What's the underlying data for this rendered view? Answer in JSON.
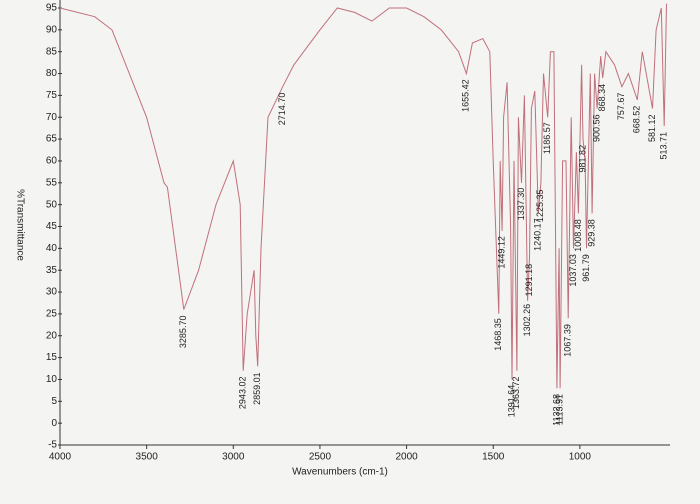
{
  "chart_data": {
    "type": "line",
    "xlabel": "Wavenumbers (cm-1)",
    "ylabel": "%Transmittance",
    "xlim": [
      4000,
      480
    ],
    "ylim": [
      -5,
      95
    ],
    "xticks": [
      4000,
      3500,
      3000,
      2500,
      2000,
      1500,
      1000
    ],
    "yticks": [
      -5,
      0,
      5,
      10,
      15,
      20,
      25,
      30,
      35,
      40,
      45,
      50,
      55,
      60,
      65,
      70,
      75,
      80,
      85,
      90,
      95
    ],
    "grid": false,
    "x": [
      4000,
      3800,
      3700,
      3600,
      3500,
      3400,
      3380,
      3285.7,
      3200,
      3100,
      3000,
      2960,
      2943,
      2920,
      2880,
      2870,
      2859,
      2840,
      2800,
      2714.7,
      2650,
      2500,
      2400,
      2300,
      2200,
      2100,
      2000,
      1900,
      1800,
      1700,
      1655,
      1620,
      1560,
      1520,
      1500,
      1468,
      1460,
      1449,
      1440,
      1420,
      1400,
      1391.6,
      1380,
      1363.7,
      1355,
      1337,
      1320,
      1302,
      1291,
      1280,
      1260,
      1240,
      1225,
      1210,
      1186,
      1170,
      1150,
      1132.7,
      1120,
      1113.9,
      1100,
      1080,
      1067.4,
      1050,
      1037,
      1020,
      1008.5,
      990,
      981.8,
      970,
      961.8,
      940,
      929.4,
      915,
      900.6,
      880,
      868.3,
      850,
      800,
      757.7,
      720,
      668.5,
      640,
      581.1,
      560,
      530,
      513.7,
      500
    ],
    "series": [
      {
        "color": "#c0707a",
        "values": [
          95,
          93,
          90,
          80,
          70,
          55,
          54,
          26,
          35,
          50,
          60,
          50,
          12,
          25,
          35,
          20,
          13,
          40,
          70,
          77,
          82,
          90,
          95,
          94,
          92,
          95,
          95,
          93,
          90,
          85,
          80,
          87,
          88,
          85,
          60,
          25,
          60,
          44,
          70,
          78,
          45,
          10,
          60,
          12,
          70,
          55,
          75,
          28,
          38,
          72,
          76,
          48,
          55,
          80,
          70,
          85,
          85,
          8,
          40,
          8,
          60,
          60,
          24,
          70,
          40,
          62,
          48,
          82,
          65,
          60,
          40,
          80,
          48,
          80,
          72,
          84,
          79,
          85,
          82,
          77,
          80,
          74,
          85,
          72,
          90,
          95,
          68,
          96
        ]
      }
    ],
    "annotations": [
      {
        "value": 3285.7,
        "label": "3285.70"
      },
      {
        "value": 2943.02,
        "label": "2943.02"
      },
      {
        "value": 2859.01,
        "label": "2859.01"
      },
      {
        "value": 2714.7,
        "label": "2714.70"
      },
      {
        "value": 1655.42,
        "label": "1655.42"
      },
      {
        "value": 1468.35,
        "label": "1468.35"
      },
      {
        "value": 1449.12,
        "label": "1449.12"
      },
      {
        "value": 1391.64,
        "label": "1391.64"
      },
      {
        "value": 1363.72,
        "label": "1363.72"
      },
      {
        "value": 1337.3,
        "label": "1337.30"
      },
      {
        "value": 1302.26,
        "label": "1302.26"
      },
      {
        "value": 1291.18,
        "label": "1291.18"
      },
      {
        "value": 1240.17,
        "label": "1240.17"
      },
      {
        "value": 1225.35,
        "label": "1225.35"
      },
      {
        "value": 1186.57,
        "label": "1186.57"
      },
      {
        "value": 1132.68,
        "label": "1132.68"
      },
      {
        "value": 1113.91,
        "label": "1113.91"
      },
      {
        "value": 1067.39,
        "label": "1067.39"
      },
      {
        "value": 1037.03,
        "label": "1037.03"
      },
      {
        "value": 1008.48,
        "label": "1008.48"
      },
      {
        "value": 981.82,
        "label": "981.82"
      },
      {
        "value": 961.79,
        "label": "961.79"
      },
      {
        "value": 929.38,
        "label": "929.38"
      },
      {
        "value": 900.56,
        "label": "900.56"
      },
      {
        "value": 868.34,
        "label": "868.34"
      },
      {
        "value": 757.67,
        "label": "757.67"
      },
      {
        "value": 668.52,
        "label": "668.52"
      },
      {
        "value": 581.12,
        "label": "581.12"
      },
      {
        "value": 513.71,
        "label": "513.71"
      }
    ]
  }
}
